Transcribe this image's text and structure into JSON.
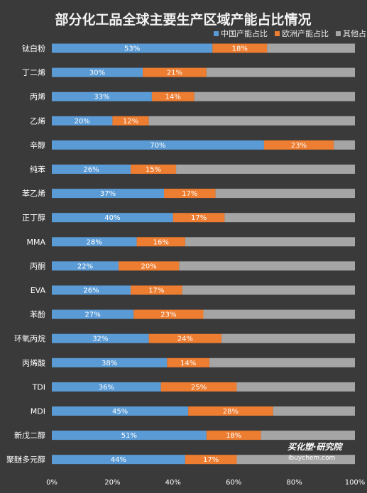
{
  "chart_data": {
    "type": "bar",
    "orientation": "horizontal",
    "stacked": "percent",
    "title": "部分化工品全球主要生产区域产能占比情况",
    "categories": [
      "钛白粉",
      "丁二烯",
      "丙烯",
      "乙烯",
      "辛醇",
      "纯苯",
      "苯乙烯",
      "正丁醇",
      "MMA",
      "丙酮",
      "EVA",
      "苯酚",
      "环氧丙烷",
      "丙烯酸",
      "TDI",
      "MDI",
      "新戊二醇",
      "聚醚多元醇"
    ],
    "series": [
      {
        "name": "中国产能占比",
        "color": "#5b9bd5",
        "values": [
          53,
          30,
          33,
          20,
          70,
          26,
          37,
          40,
          28,
          22,
          26,
          27,
          32,
          38,
          36,
          45,
          51,
          44
        ],
        "labels": [
          "53%",
          "30%",
          "33%",
          "20%",
          "70%",
          "26%",
          "37%",
          "40%",
          "28%",
          "22%",
          "26%",
          "27%",
          "32%",
          "38%",
          "36%",
          "45%",
          "51%",
          "44%"
        ]
      },
      {
        "name": "欧洲产能占比",
        "color": "#ed7d31",
        "values": [
          18,
          21,
          14,
          12,
          23,
          15,
          17,
          17,
          16,
          20,
          17,
          23,
          24,
          14,
          25,
          28,
          18,
          17
        ],
        "labels": [
          "18%",
          "21%",
          "14%",
          "12%",
          "23%",
          "15%",
          "17%",
          "17%",
          "16%",
          "20%",
          "17%",
          "23%",
          "24%",
          "14%",
          "25%",
          "28%",
          "18%",
          "17%"
        ]
      },
      {
        "name": "其他占比",
        "color": "#a5a5a5",
        "values": [
          29,
          49,
          53,
          68,
          7,
          59,
          46,
          43,
          56,
          58,
          57,
          50,
          44,
          48,
          39,
          27,
          31,
          39
        ]
      }
    ],
    "legend_labels": [
      "中国产能占比",
      "欧洲产能占比",
      "其他占"
    ],
    "xlim": [
      0,
      100
    ],
    "x_ticks": [
      "0%",
      "20%",
      "40%",
      "60%",
      "80%",
      "100%"
    ],
    "legend_position": "top-right",
    "grid": false
  },
  "watermark": {
    "main": "买化塑·研究院",
    "sub": "ibuychem.com"
  }
}
